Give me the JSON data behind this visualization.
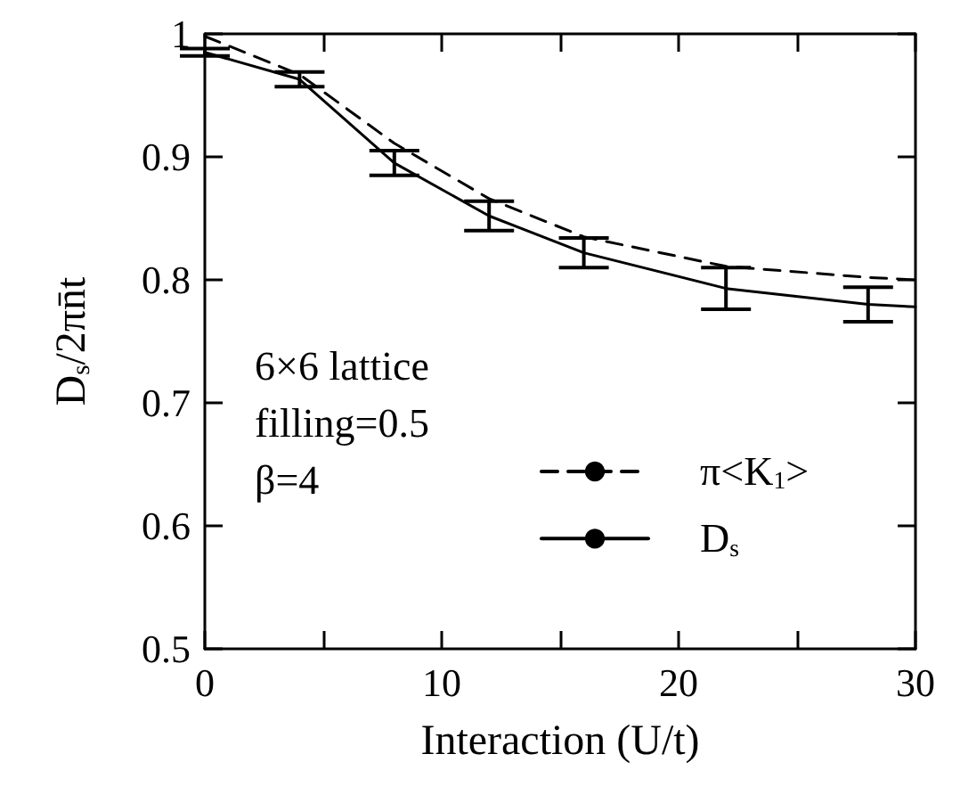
{
  "chart_data": {
    "type": "line",
    "xlabel": "Interaction (U/t)",
    "ylabel": "D$_{s}$/2πn̄t",
    "xlim": [
      0,
      30
    ],
    "xticks": [
      0,
      {
        "value": 5,
        "label": null
      },
      10,
      {
        "value": 15,
        "label": null
      },
      20,
      {
        "value": 25,
        "label": null
      },
      30
    ],
    "ylim": [
      0.5,
      1
    ],
    "yticks": [
      0.5,
      0.6,
      0.7,
      0.8,
      0.9,
      1
    ],
    "series": [
      {
        "name": "π<K$_{1}$>",
        "color": "#000000",
        "line_style": "dashed",
        "x": [
          0,
          4,
          8,
          12,
          16,
          22,
          28,
          30
        ],
        "values": [
          0.998,
          0.967,
          0.911,
          0.866,
          0.835,
          0.811,
          0.802,
          0.8
        ]
      },
      {
        "name": "D$_{s}$",
        "color": "#000000",
        "line_style": "solid",
        "x": [
          0,
          4,
          8,
          12,
          16,
          22,
          28,
          30
        ],
        "values": [
          0.985,
          0.963,
          0.895,
          0.852,
          0.822,
          0.793,
          0.78,
          0.778
        ],
        "errors": [
          0.003,
          0.006,
          0.01,
          0.012,
          0.012,
          0.017,
          0.014,
          null
        ]
      }
    ],
    "annotations": [
      "6×6 lattice",
      "filling=0.5",
      "β=4"
    ],
    "legend": "right",
    "marker": "none",
    "grid": false
  }
}
